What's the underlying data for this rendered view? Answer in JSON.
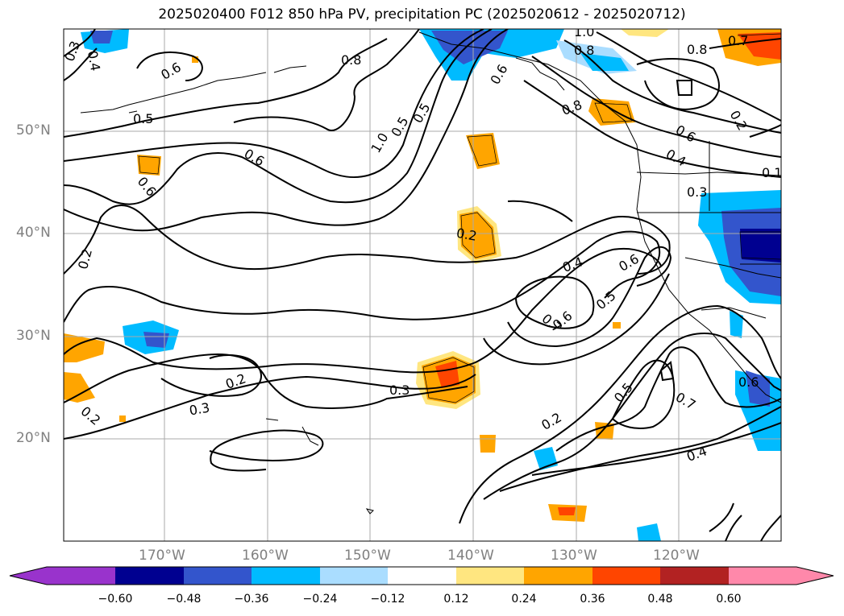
{
  "title": "2025020400 F012 850 hPa PV, precipitation PC (2025020612 - 2025020712)",
  "lat_labels": [
    "50°N",
    "40°N",
    "30°N",
    "20°N"
  ],
  "lon_labels": [
    "170°W",
    "160°W",
    "150°W",
    "140°W",
    "130°W",
    "120°W"
  ],
  "colorbar": {
    "ticks": [
      "−0.60",
      "−0.48",
      "−0.36",
      "−0.24",
      "−0.12",
      "0.12",
      "0.24",
      "0.36",
      "0.48",
      "0.60"
    ],
    "colors": [
      "#9933cc",
      "#000090",
      "#3355cc",
      "#00bbff",
      "#aaddff",
      "#ffffff",
      "#ffe680",
      "#ffa500",
      "#ff4500",
      "#b22222",
      "#ff88aa"
    ]
  },
  "contour_labels": [
    "0.3",
    "0.4",
    "0.6",
    "0.5",
    "0.8",
    "1.0",
    "0.5",
    "0.5",
    "0.6",
    "0.8",
    "0.7",
    "0.8",
    "0.8",
    "1.0",
    "0.2",
    "0.6",
    "0.4",
    "0.3",
    "0.1",
    "0.6",
    "0.6",
    "0.2",
    "0.2",
    "0.4",
    "0.6",
    "0.5",
    "0.7",
    "0.6",
    "0.3",
    "0.2",
    "0.3",
    "0.2",
    "0.5",
    "0.7",
    "0.2",
    "0.4",
    "0.6"
  ]
}
